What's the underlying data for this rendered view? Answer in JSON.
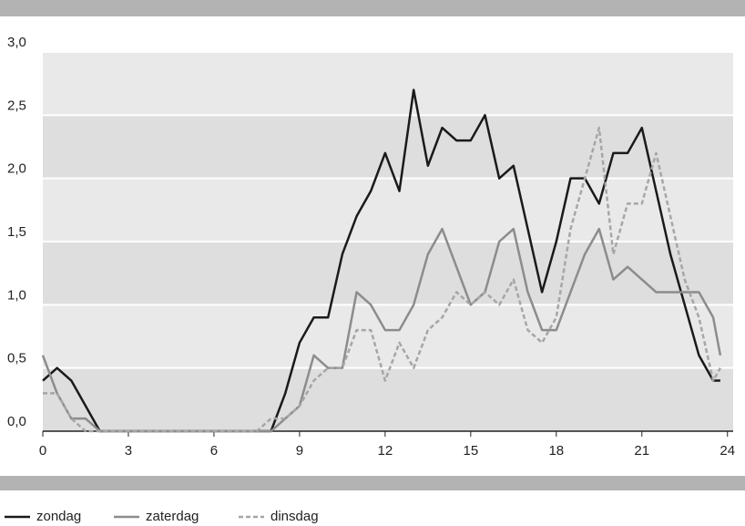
{
  "chart_data": {
    "type": "line",
    "x": [
      0,
      0.5,
      1,
      1.5,
      2,
      2.5,
      3,
      3.5,
      4,
      4.5,
      5,
      5.5,
      6,
      6.5,
      7,
      7.5,
      8,
      8.5,
      9,
      9.5,
      10,
      10.5,
      11,
      11.5,
      12,
      12.5,
      13,
      13.5,
      14,
      14.5,
      15,
      15.5,
      16,
      16.5,
      17,
      17.5,
      18,
      18.5,
      19,
      19.5,
      20,
      20.5,
      21,
      21.5,
      22,
      22.5,
      23,
      23.5,
      23.75
    ],
    "series": [
      {
        "name": "zondag",
        "color": "#1a1a1a",
        "dash": false,
        "values": [
          0.4,
          0.5,
          0.4,
          0.2,
          0,
          0,
          0,
          0,
          0,
          0,
          0,
          0,
          0,
          0,
          0,
          0,
          0,
          0.3,
          0.7,
          0.9,
          0.9,
          1.4,
          1.7,
          1.9,
          2.2,
          1.9,
          2.7,
          2.1,
          2.4,
          2.3,
          2.3,
          2.5,
          2.0,
          2.1,
          1.6,
          1.1,
          1.5,
          2.0,
          2.0,
          1.8,
          2.2,
          2.2,
          2.4,
          1.9,
          1.4,
          1.0,
          0.6,
          0.4,
          0.4
        ]
      },
      {
        "name": "zaterdag",
        "color": "#8c8c8c",
        "dash": false,
        "values": [
          0.6,
          0.3,
          0.1,
          0.1,
          0,
          0,
          0,
          0,
          0,
          0,
          0,
          0,
          0,
          0,
          0,
          0,
          0,
          0.1,
          0.2,
          0.6,
          0.5,
          0.5,
          1.1,
          1.0,
          0.8,
          0.8,
          1.0,
          1.4,
          1.6,
          1.3,
          1.0,
          1.1,
          1.5,
          1.6,
          1.1,
          0.8,
          0.8,
          1.1,
          1.4,
          1.6,
          1.2,
          1.3,
          1.2,
          1.1,
          1.1,
          1.1,
          1.1,
          0.9,
          0.6
        ]
      },
      {
        "name": "dinsdag",
        "color": "#a6a6a6",
        "dash": true,
        "values": [
          0.3,
          0.3,
          0.1,
          0,
          0,
          0,
          0,
          0,
          0,
          0,
          0,
          0,
          0,
          0,
          0,
          0,
          0.1,
          0.1,
          0.2,
          0.4,
          0.5,
          0.5,
          0.8,
          0.8,
          0.4,
          0.7,
          0.5,
          0.8,
          0.9,
          1.1,
          1.0,
          1.1,
          1.0,
          1.2,
          0.8,
          0.7,
          0.9,
          1.6,
          2.0,
          2.4,
          1.4,
          1.8,
          1.8,
          2.2,
          1.7,
          1.2,
          0.9,
          0.4,
          0.5
        ]
      }
    ],
    "xlim": [
      0,
      24.2
    ],
    "xticks": [
      0,
      3,
      6,
      9,
      12,
      15,
      18,
      21,
      24
    ],
    "ylim": [
      0,
      3
    ],
    "yticks": [
      {
        "value": 0,
        "label": "0,0"
      },
      {
        "value": 0.5,
        "label": "0,5"
      },
      {
        "value": 1,
        "label": "1,0"
      },
      {
        "value": 1.5,
        "label": "1,5"
      },
      {
        "value": 2,
        "label": "2,0"
      },
      {
        "value": 2.5,
        "label": "2,5"
      },
      {
        "value": 3,
        "label": "3,0"
      }
    ],
    "grid": true
  }
}
